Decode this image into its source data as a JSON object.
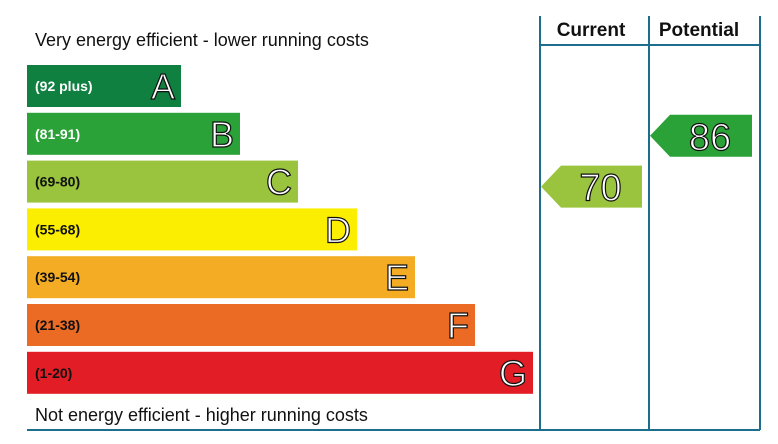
{
  "chart_data": {
    "type": "bar",
    "title": "",
    "top_caption": "Very energy efficient - lower running costs",
    "bottom_caption": "Not energy efficient - higher running costs",
    "column_headers": {
      "current": "Current",
      "potential": "Potential"
    },
    "bands": [
      {
        "letter": "A",
        "range": "(92 plus)",
        "min": 92,
        "max": 100,
        "color": "#0f8040",
        "range_text_color": "#ffffff"
      },
      {
        "letter": "B",
        "range": "(81-91)",
        "min": 81,
        "max": 91,
        "color": "#2aa237",
        "range_text_color": "#ffffff"
      },
      {
        "letter": "C",
        "range": "(69-80)",
        "min": 69,
        "max": 80,
        "color": "#9ac43e",
        "range_text_color": "#111111"
      },
      {
        "letter": "D",
        "range": "(55-68)",
        "min": 55,
        "max": 68,
        "color": "#fbee00",
        "range_text_color": "#111111"
      },
      {
        "letter": "E",
        "range": "(39-54)",
        "min": 39,
        "max": 54,
        "color": "#f4ac25",
        "range_text_color": "#111111"
      },
      {
        "letter": "F",
        "range": "(21-38)",
        "min": 21,
        "max": 38,
        "color": "#eb6b25",
        "range_text_color": "#111111"
      },
      {
        "letter": "G",
        "range": "(1-20)",
        "min": 1,
        "max": 20,
        "color": "#e31d25",
        "range_text_color": "#111111"
      }
    ],
    "ratings": {
      "current": {
        "label": "Current",
        "value": 70,
        "band": "C",
        "color": "#9ac43e"
      },
      "potential": {
        "label": "Potential",
        "value": 86,
        "band": "B",
        "color": "#2aa237"
      }
    },
    "border_color": "#1d6e8c"
  }
}
